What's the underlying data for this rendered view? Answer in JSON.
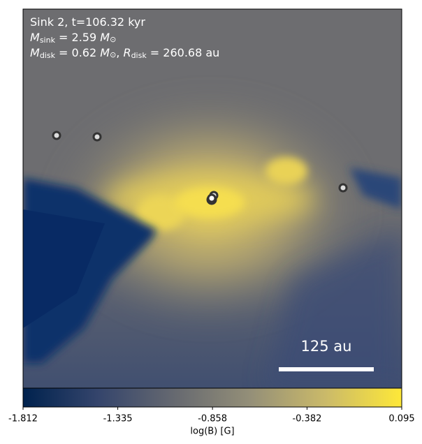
{
  "chart_data": {
    "type": "image",
    "annotations": [
      [
        "Sink 2, t=106.32 kyr"
      ],
      [
        "M",
        "sink",
        " = 2.59 ",
        "M",
        "⊙"
      ],
      [
        "M",
        "disk",
        " = 0.62 ",
        "M",
        "⊙",
        ", ",
        "R",
        "disk",
        " = 260.68 au"
      ]
    ],
    "scale_bar": "125 au",
    "colorbar": {
      "label": "log(B) [G]",
      "lim": [
        -1.812,
        0.095
      ],
      "ticks": [
        -1.812,
        -1.335,
        -0.858,
        -0.382,
        0.095
      ],
      "colors": [
        "#00224e",
        "#35456c",
        "#666970",
        "#948f78",
        "#cbba69",
        "#fee838"
      ]
    }
  }
}
